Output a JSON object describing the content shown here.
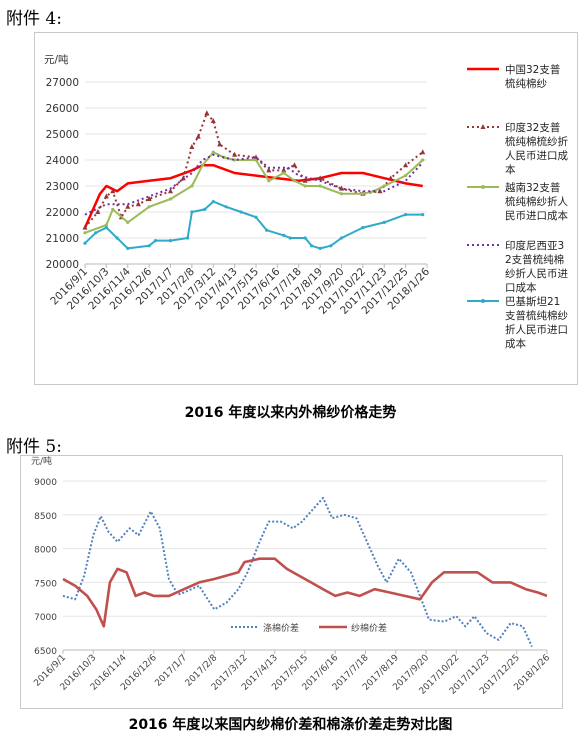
{
  "attachments": {
    "a4": "附件 4:",
    "a5": "附件 5:"
  },
  "captions": {
    "c1": "2016 年度以来内外棉纱价格走势",
    "c2": "2016 年度以来国内纱棉价差和棉涤价差走势对比图"
  },
  "chart_data": [
    {
      "type": "line",
      "ylabel": "元/吨",
      "ylim": [
        20000,
        27000
      ],
      "yticks": [
        20000,
        21000,
        22000,
        23000,
        24000,
        25000,
        26000,
        27000
      ],
      "categories": [
        "2016/9/1",
        "2016/10/3",
        "2016/11/4",
        "2016/12/6",
        "2017/1/7",
        "2017/2/8",
        "2017/3/12",
        "2017/4/13",
        "2017/5/15",
        "2017/6/16",
        "2017/7/18",
        "2017/8/19",
        "2017/9/20",
        "2017/10/22",
        "2017/11/23",
        "2017/12/25",
        "2018/1/26"
      ],
      "series": [
        {
          "name": "中国32支普梳纯棉纱",
          "color": "#ff0000",
          "points": [
            [
              0,
              21400
            ],
            [
              0.7,
              22700
            ],
            [
              1,
              23000
            ],
            [
              1.5,
              22800
            ],
            [
              2,
              23100
            ],
            [
              3,
              23200
            ],
            [
              4,
              23300
            ],
            [
              5,
              23600
            ],
            [
              5.5,
              23800
            ],
            [
              6,
              23800
            ],
            [
              7,
              23500
            ],
            [
              8,
              23400
            ],
            [
              9,
              23300
            ],
            [
              10,
              23200
            ],
            [
              11,
              23300
            ],
            [
              12,
              23500
            ],
            [
              13,
              23500
            ],
            [
              14,
              23300
            ],
            [
              15,
              23100
            ],
            [
              15.8,
              23000
            ]
          ]
        },
        {
          "name": "印度32支普梳纯棉梳纱折人民币进口成本",
          "color": "#943634",
          "points": [
            [
              0,
              21400
            ],
            [
              0.6,
              22000
            ],
            [
              1,
              22600
            ],
            [
              1.3,
              22800
            ],
            [
              1.7,
              21800
            ],
            [
              2,
              22200
            ],
            [
              2.5,
              22300
            ],
            [
              3,
              22500
            ],
            [
              4,
              22800
            ],
            [
              4.6,
              23300
            ],
            [
              5,
              24500
            ],
            [
              5.3,
              24900
            ],
            [
              5.7,
              25800
            ],
            [
              6,
              25500
            ],
            [
              6.3,
              24600
            ],
            [
              7,
              24200
            ],
            [
              8,
              24100
            ],
            [
              8.6,
              23600
            ],
            [
              9.3,
              23600
            ],
            [
              9.8,
              23800
            ],
            [
              10.3,
              23200
            ],
            [
              11,
              23300
            ],
            [
              12,
              22900
            ],
            [
              13,
              22700
            ],
            [
              13.8,
              22800
            ],
            [
              14.3,
              23300
            ],
            [
              15,
              23800
            ],
            [
              15.8,
              24300
            ]
          ]
        },
        {
          "name": "越南32支普梳纯棉纱折人民币进口成本",
          "color": "#9bbb59",
          "points": [
            [
              0,
              21200
            ],
            [
              1,
              21500
            ],
            [
              1.3,
              22100
            ],
            [
              2,
              21600
            ],
            [
              3,
              22200
            ],
            [
              4,
              22500
            ],
            [
              5,
              23000
            ],
            [
              5.5,
              23800
            ],
            [
              6,
              24300
            ],
            [
              6.5,
              24100
            ],
            [
              7,
              24000
            ],
            [
              8,
              24000
            ],
            [
              8.6,
              23200
            ],
            [
              9.3,
              23500
            ],
            [
              9.8,
              23200
            ],
            [
              10.3,
              23000
            ],
            [
              11,
              23000
            ],
            [
              12,
              22700
            ],
            [
              13,
              22700
            ],
            [
              13.5,
              22800
            ],
            [
              14,
              23000
            ],
            [
              15,
              23400
            ],
            [
              15.8,
              24000
            ]
          ]
        },
        {
          "name": "印度尼西亚32支普梳纯棉纱折人民币进口成本",
          "color": "#7030a0",
          "points": [
            [
              0,
              21900
            ],
            [
              1,
              22300
            ],
            [
              2,
              22300
            ],
            [
              3,
              22600
            ],
            [
              4,
              22900
            ],
            [
              5,
              23500
            ],
            [
              5.5,
              24000
            ],
            [
              6,
              24200
            ],
            [
              7,
              24000
            ],
            [
              8,
              24100
            ],
            [
              8.6,
              23700
            ],
            [
              9.5,
              23700
            ],
            [
              10,
              23400
            ],
            [
              11,
              23200
            ],
            [
              12,
              22900
            ],
            [
              13,
              22800
            ],
            [
              14,
              22800
            ],
            [
              15,
              23200
            ],
            [
              15.8,
              23900
            ]
          ]
        },
        {
          "name": "巴基斯坦21支普梳纯棉纱折人民币进口成本",
          "color": "#31a9c9",
          "points": [
            [
              0,
              20800
            ],
            [
              0.5,
              21200
            ],
            [
              1,
              21400
            ],
            [
              1.5,
              21000
            ],
            [
              2,
              20600
            ],
            [
              3,
              20700
            ],
            [
              3.3,
              20900
            ],
            [
              4,
              20900
            ],
            [
              4.8,
              21000
            ],
            [
              5,
              22000
            ],
            [
              5.6,
              22100
            ],
            [
              6,
              22400
            ],
            [
              6.6,
              22200
            ],
            [
              7.3,
              22000
            ],
            [
              8,
              21800
            ],
            [
              8.5,
              21300
            ],
            [
              9.3,
              21100
            ],
            [
              9.6,
              21000
            ],
            [
              10.3,
              21000
            ],
            [
              10.6,
              20700
            ],
            [
              11,
              20600
            ],
            [
              11.5,
              20700
            ],
            [
              12,
              21000
            ],
            [
              13,
              21400
            ],
            [
              14,
              21600
            ],
            [
              15,
              21900
            ],
            [
              15.8,
              21900
            ]
          ]
        }
      ],
      "legend_position": "right"
    },
    {
      "type": "line",
      "ylabel": "元/吨",
      "ylim": [
        6500,
        9000
      ],
      "yticks": [
        6500,
        7000,
        7500,
        8000,
        8500,
        9000
      ],
      "categories": [
        "2016/9/1",
        "2016/10/3",
        "2016/11/4",
        "2016/12/6",
        "2017/1/7",
        "2017/2/8",
        "2017/3/12",
        "2017/4/13",
        "2017/5/15",
        "2017/6/16",
        "2017/7/18",
        "2017/8/19",
        "2017/9/20",
        "2017/10/22",
        "2017/11/23",
        "2017/12/25",
        "2018/1/26"
      ],
      "series": [
        {
          "name": "涤棉价差",
          "color": "#4f81bd",
          "dash": true,
          "points": [
            [
              0,
              7300
            ],
            [
              0.4,
              7250
            ],
            [
              0.7,
              7600
            ],
            [
              1,
              8200
            ],
            [
              1.25,
              8480
            ],
            [
              1.5,
              8250
            ],
            [
              1.8,
              8100
            ],
            [
              2.2,
              8300
            ],
            [
              2.5,
              8200
            ],
            [
              2.9,
              8550
            ],
            [
              3.2,
              8300
            ],
            [
              3.5,
              7550
            ],
            [
              3.8,
              7320
            ],
            [
              4,
              7350
            ],
            [
              4.5,
              7450
            ],
            [
              5,
              7100
            ],
            [
              5.4,
              7200
            ],
            [
              5.8,
              7400
            ],
            [
              6.1,
              7650
            ],
            [
              6.5,
              8100
            ],
            [
              6.8,
              8400
            ],
            [
              7.2,
              8400
            ],
            [
              7.6,
              8300
            ],
            [
              7.9,
              8400
            ],
            [
              8.3,
              8600
            ],
            [
              8.6,
              8750
            ],
            [
              8.9,
              8450
            ],
            [
              9.3,
              8500
            ],
            [
              9.7,
              8450
            ],
            [
              10,
              8150
            ],
            [
              10.4,
              7750
            ],
            [
              10.7,
              7500
            ],
            [
              11.1,
              7850
            ],
            [
              11.5,
              7650
            ],
            [
              11.8,
              7300
            ],
            [
              12.1,
              6950
            ],
            [
              12.6,
              6920
            ],
            [
              13,
              7000
            ],
            [
              13.3,
              6850
            ],
            [
              13.6,
              7000
            ],
            [
              14,
              6750
            ],
            [
              14.4,
              6650
            ],
            [
              14.8,
              6900
            ],
            [
              15.2,
              6850
            ],
            [
              15.5,
              6550
            ]
          ]
        },
        {
          "name": "纱棉价差",
          "color": "#c0504d",
          "dash": false,
          "points": [
            [
              0,
              7550
            ],
            [
              0.4,
              7450
            ],
            [
              0.8,
              7300
            ],
            [
              1.1,
              7100
            ],
            [
              1.35,
              6850
            ],
            [
              1.55,
              7500
            ],
            [
              1.8,
              7700
            ],
            [
              2.1,
              7650
            ],
            [
              2.4,
              7300
            ],
            [
              2.7,
              7350
            ],
            [
              3,
              7300
            ],
            [
              3.5,
              7300
            ],
            [
              4,
              7400
            ],
            [
              4.5,
              7500
            ],
            [
              5,
              7550
            ],
            [
              5.4,
              7600
            ],
            [
              5.8,
              7650
            ],
            [
              6,
              7800
            ],
            [
              6.5,
              7850
            ],
            [
              7,
              7850
            ],
            [
              7.4,
              7700
            ],
            [
              7.8,
              7600
            ],
            [
              8.2,
              7500
            ],
            [
              8.6,
              7400
            ],
            [
              9,
              7300
            ],
            [
              9.4,
              7350
            ],
            [
              9.8,
              7300
            ],
            [
              10.3,
              7400
            ],
            [
              10.8,
              7350
            ],
            [
              11.3,
              7300
            ],
            [
              11.8,
              7250
            ],
            [
              12.2,
              7500
            ],
            [
              12.6,
              7650
            ],
            [
              13.2,
              7650
            ],
            [
              13.7,
              7650
            ],
            [
              14.2,
              7500
            ],
            [
              14.8,
              7500
            ],
            [
              15.3,
              7400
            ],
            [
              15.7,
              7350
            ],
            [
              16,
              7300
            ]
          ]
        }
      ],
      "legend_position": "bottom-center"
    }
  ]
}
